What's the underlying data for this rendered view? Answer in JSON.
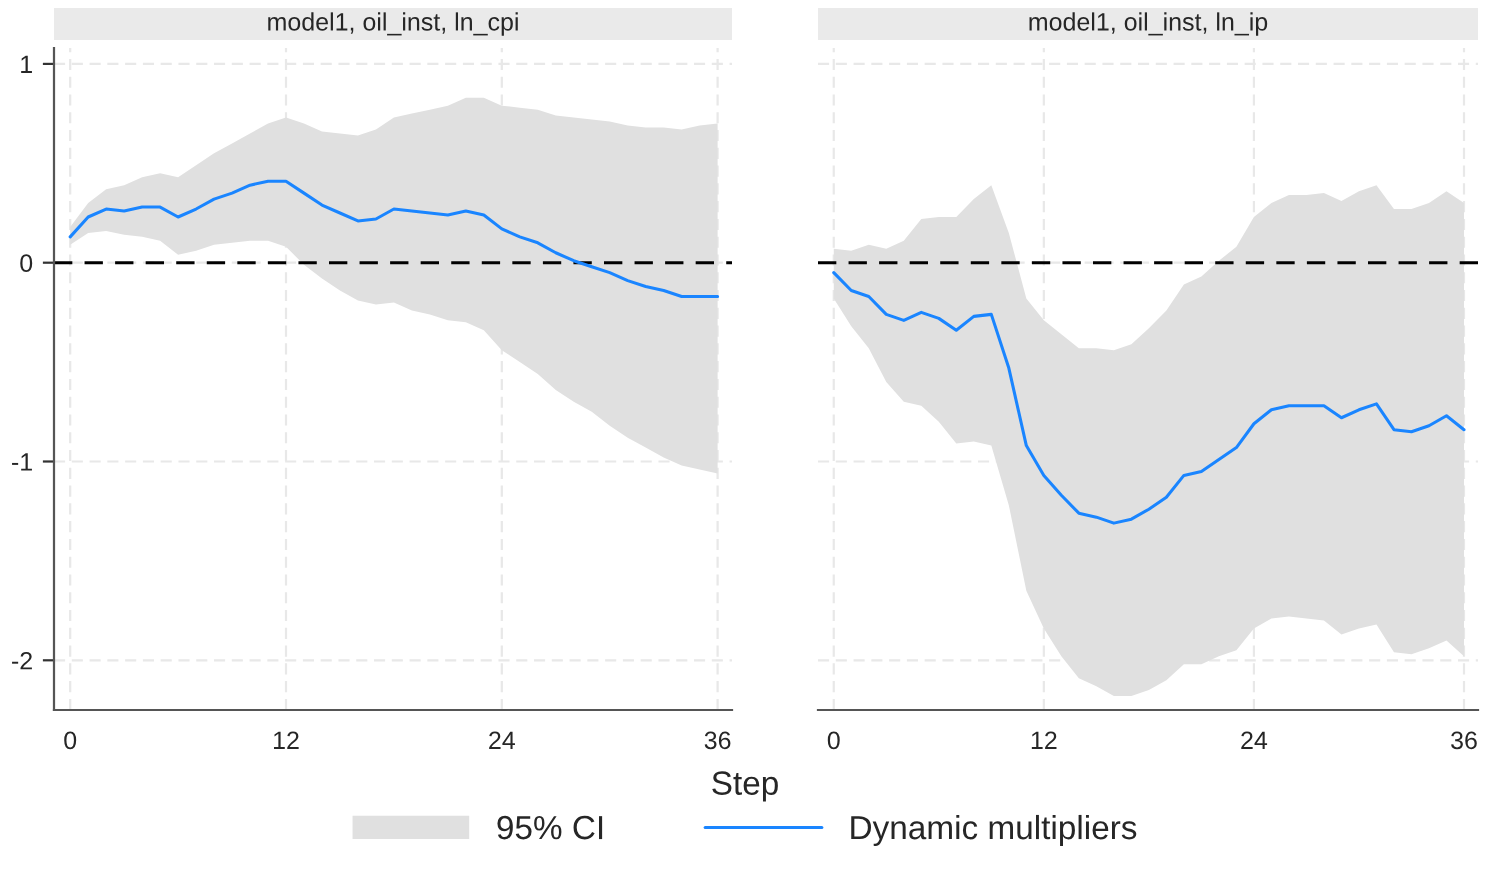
{
  "chart_data": [
    {
      "type": "line",
      "title": "model1, oil_inst, ln_cpi",
      "xlabel": "Step",
      "annotations": [
        "95% CI"
      ],
      "x": [
        0,
        1,
        2,
        3,
        4,
        5,
        6,
        7,
        8,
        9,
        10,
        11,
        12,
        13,
        14,
        15,
        16,
        17,
        18,
        19,
        20,
        21,
        22,
        23,
        24,
        25,
        26,
        27,
        28,
        29,
        30,
        31,
        32,
        33,
        34,
        35,
        36
      ],
      "series": [
        {
          "name": "Dynamic multipliers",
          "color": "#1a85ff",
          "values": [
            0.13,
            0.23,
            0.27,
            0.26,
            0.28,
            0.28,
            0.23,
            0.27,
            0.32,
            0.35,
            0.39,
            0.41,
            0.41,
            0.35,
            0.29,
            0.25,
            0.21,
            0.22,
            0.27,
            0.26,
            0.25,
            0.24,
            0.26,
            0.24,
            0.17,
            0.13,
            0.1,
            0.05,
            0.01,
            -0.02,
            -0.05,
            -0.09,
            -0.12,
            -0.14,
            -0.17,
            -0.17,
            -0.17
          ],
          "lower": [
            0.09,
            0.15,
            0.16,
            0.14,
            0.13,
            0.11,
            0.04,
            0.06,
            0.09,
            0.1,
            0.11,
            0.11,
            0.08,
            -0.01,
            -0.08,
            -0.14,
            -0.19,
            -0.21,
            -0.2,
            -0.24,
            -0.26,
            -0.29,
            -0.3,
            -0.34,
            -0.44,
            -0.5,
            -0.56,
            -0.64,
            -0.7,
            -0.75,
            -0.82,
            -0.88,
            -0.93,
            -0.98,
            -1.02,
            -1.04,
            -1.06
          ],
          "upper": [
            0.18,
            0.3,
            0.37,
            0.39,
            0.43,
            0.45,
            0.43,
            0.49,
            0.55,
            0.6,
            0.65,
            0.7,
            0.73,
            0.7,
            0.66,
            0.65,
            0.64,
            0.67,
            0.73,
            0.75,
            0.77,
            0.79,
            0.83,
            0.83,
            0.79,
            0.78,
            0.77,
            0.74,
            0.73,
            0.72,
            0.71,
            0.69,
            0.68,
            0.68,
            0.67,
            0.69,
            0.7
          ]
        }
      ],
      "xlim": [
        -0.9,
        36.8
      ],
      "ylim": [
        -2.25,
        1.08
      ],
      "xticks": [
        0,
        12,
        24,
        36
      ],
      "yticks": [
        -2,
        -1,
        0,
        1
      ],
      "ref_lines": [
        {
          "axis": "y",
          "value": 0,
          "color": "#000000",
          "line_style": "dashed"
        }
      ],
      "grid": true,
      "legend": "bottom",
      "marker": "none",
      "line_style": "solid"
    },
    {
      "type": "line",
      "title": "model1, oil_inst, ln_ip",
      "x": [
        0,
        1,
        2,
        3,
        4,
        5,
        6,
        7,
        8,
        9,
        10,
        11,
        12,
        13,
        14,
        15,
        16,
        17,
        18,
        19,
        20,
        21,
        22,
        23,
        24,
        25,
        26,
        27,
        28,
        29,
        30,
        31,
        32,
        33,
        34,
        35,
        36
      ],
      "series": [
        {
          "color": "#1a85ff",
          "values": [
            -0.05,
            -0.14,
            -0.17,
            -0.26,
            -0.29,
            -0.25,
            -0.28,
            -0.34,
            -0.27,
            -0.26,
            -0.53,
            -0.92,
            -1.07,
            -1.17,
            -1.26,
            -1.28,
            -1.31,
            -1.29,
            -1.24,
            -1.18,
            -1.07,
            -1.05,
            -0.99,
            -0.93,
            -0.81,
            -0.74,
            -0.72,
            -0.72,
            -0.72,
            -0.78,
            -0.74,
            -0.71,
            -0.84,
            -0.85,
            -0.82,
            -0.77,
            -0.84
          ],
          "lower": [
            -0.18,
            -0.32,
            -0.43,
            -0.6,
            -0.7,
            -0.72,
            -0.8,
            -0.91,
            -0.9,
            -0.92,
            -1.22,
            -1.65,
            -1.84,
            -1.98,
            -2.09,
            -2.13,
            -2.18,
            -2.18,
            -2.15,
            -2.1,
            -2.02,
            -2.02,
            -1.98,
            -1.95,
            -1.84,
            -1.79,
            -1.78,
            -1.79,
            -1.8,
            -1.87,
            -1.84,
            -1.82,
            -1.96,
            -1.97,
            -1.94,
            -1.9,
            -1.98
          ],
          "upper": [
            0.07,
            0.06,
            0.09,
            0.07,
            0.11,
            0.22,
            0.23,
            0.23,
            0.32,
            0.39,
            0.15,
            -0.18,
            -0.29,
            -0.36,
            -0.43,
            -0.43,
            -0.44,
            -0.41,
            -0.33,
            -0.24,
            -0.11,
            -0.07,
            0.01,
            0.08,
            0.23,
            0.3,
            0.34,
            0.34,
            0.35,
            0.31,
            0.36,
            0.39,
            0.27,
            0.27,
            0.3,
            0.36,
            0.3
          ]
        }
      ],
      "xlim": [
        -0.9,
        36.8
      ],
      "ylim": [
        -2.25,
        1.08
      ],
      "xticks": [
        0,
        12,
        24,
        36
      ],
      "yticks": [
        -2,
        -1,
        0,
        1
      ],
      "tick_labels": "x",
      "ref_lines": [
        {
          "axis": "y",
          "value": 0,
          "color": "#000000",
          "line_style": "dashed"
        }
      ],
      "grid": true,
      "marker": "none",
      "line_style": "solid"
    }
  ]
}
